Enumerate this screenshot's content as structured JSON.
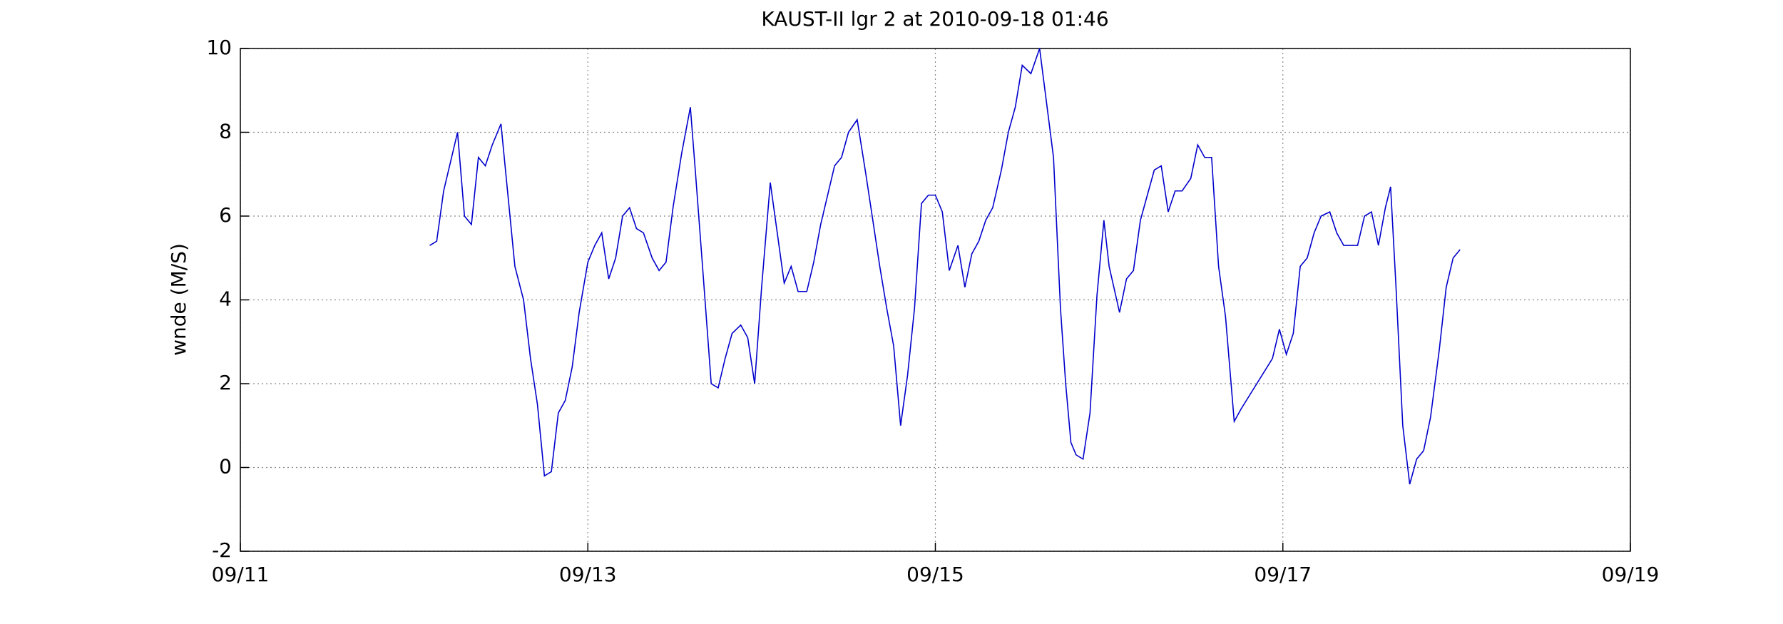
{
  "chart_data": {
    "type": "line",
    "title": "KAUST-II lgr 2 at 2010-09-18 01:46",
    "y_label": "wnde (M/S)",
    "x": [
      12.09,
      12.13,
      12.17,
      12.21,
      12.25,
      12.29,
      12.33,
      12.37,
      12.41,
      12.45,
      12.5,
      12.54,
      12.58,
      12.63,
      12.67,
      12.71,
      12.75,
      12.79,
      12.83,
      12.87,
      12.91,
      12.95,
      13.0,
      13.04,
      13.08,
      13.12,
      13.16,
      13.2,
      13.24,
      13.28,
      13.32,
      13.37,
      13.41,
      13.45,
      13.49,
      13.54,
      13.59,
      13.62,
      13.66,
      13.71,
      13.75,
      13.79,
      13.83,
      13.88,
      13.92,
      13.96,
      14.0,
      14.05,
      14.09,
      14.13,
      14.17,
      14.21,
      14.26,
      14.3,
      14.34,
      14.38,
      14.42,
      14.46,
      14.5,
      14.55,
      14.6,
      14.64,
      14.68,
      14.72,
      14.76,
      14.8,
      14.84,
      14.88,
      14.92,
      14.96,
      15.0,
      15.04,
      15.08,
      15.13,
      15.17,
      15.21,
      15.25,
      15.29,
      15.33,
      15.38,
      15.42,
      15.46,
      15.5,
      15.55,
      15.6,
      15.64,
      15.68,
      15.72,
      15.75,
      15.78,
      15.81,
      15.85,
      15.89,
      15.93,
      15.97,
      16.0,
      16.06,
      16.1,
      16.14,
      16.18,
      16.22,
      16.26,
      16.3,
      16.34,
      16.38,
      16.42,
      16.47,
      16.51,
      16.55,
      16.59,
      16.63,
      16.67,
      16.72,
      16.76,
      16.94,
      16.98,
      17.02,
      17.06,
      17.1,
      17.14,
      17.18,
      17.22,
      17.27,
      17.31,
      17.35,
      17.39,
      17.43,
      17.47,
      17.51,
      17.55,
      17.59,
      17.62,
      17.65,
      17.69,
      17.73,
      17.77,
      17.81,
      17.85,
      17.9,
      17.94,
      17.98,
      18.02
    ],
    "values": [
      5.3,
      5.4,
      6.6,
      7.3,
      8.0,
      6.0,
      5.8,
      7.4,
      7.2,
      7.7,
      8.2,
      6.5,
      4.8,
      4.0,
      2.6,
      1.5,
      -0.2,
      -0.1,
      1.3,
      1.6,
      2.4,
      3.7,
      4.9,
      5.3,
      5.6,
      4.5,
      5.0,
      6.0,
      6.2,
      5.7,
      5.6,
      5.0,
      4.7,
      4.9,
      6.2,
      7.5,
      8.6,
      7.0,
      4.8,
      2.0,
      1.9,
      2.6,
      3.2,
      3.4,
      3.1,
      2.0,
      4.3,
      6.8,
      5.6,
      4.4,
      4.8,
      4.2,
      4.2,
      4.9,
      5.8,
      6.5,
      7.2,
      7.4,
      8.0,
      8.3,
      7.0,
      5.9,
      4.8,
      3.8,
      2.9,
      1.0,
      2.2,
      3.8,
      6.3,
      6.5,
      6.5,
      6.1,
      4.7,
      5.3,
      4.3,
      5.1,
      5.4,
      5.9,
      6.2,
      7.1,
      8.0,
      8.6,
      9.6,
      9.4,
      10.0,
      8.7,
      7.4,
      3.8,
      2.0,
      0.6,
      0.3,
      0.2,
      1.3,
      4.1,
      5.9,
      4.8,
      3.7,
      4.5,
      4.7,
      5.9,
      6.5,
      7.1,
      7.2,
      6.1,
      6.6,
      6.6,
      6.9,
      7.7,
      7.4,
      7.4,
      4.8,
      3.6,
      1.1,
      1.4,
      2.6,
      3.3,
      2.7,
      3.2,
      4.8,
      5.0,
      5.6,
      6.0,
      6.1,
      5.6,
      5.3,
      5.3,
      5.3,
      6.0,
      6.1,
      5.3,
      6.2,
      6.7,
      4.4,
      1.0,
      -0.4,
      0.2,
      0.4,
      1.2,
      2.8,
      4.3,
      5.0,
      5.2
    ],
    "color": "#0000cc",
    "xlim": [
      11,
      19
    ],
    "xticks": [
      {
        "value": 11,
        "label": "09/11"
      },
      {
        "value": 13,
        "label": "09/13"
      },
      {
        "value": 15,
        "label": "09/15"
      },
      {
        "value": 17,
        "label": "09/17"
      },
      {
        "value": 19,
        "label": "09/19"
      }
    ],
    "ylim": [
      -2,
      10
    ],
    "yticks": [
      -2,
      0,
      2,
      4,
      6,
      8,
      10
    ],
    "grid": true
  }
}
